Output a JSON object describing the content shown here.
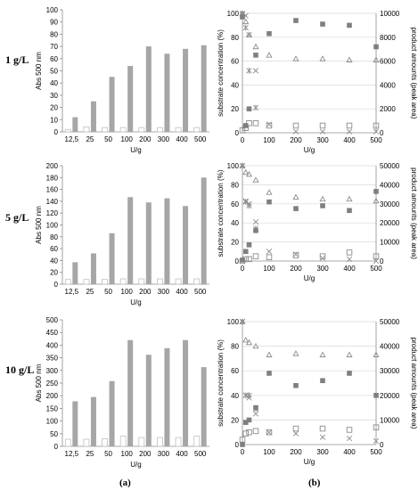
{
  "panel_labels": {
    "a": "(a)",
    "b": "(b)"
  },
  "row_labels": [
    "1 g/L",
    "5 g/L",
    "10 g/L"
  ],
  "colors": {
    "bar_fill": "#a6a6a6",
    "bar_empty_stroke": "#bfbfbf",
    "axis": "#8c8c8c",
    "grid": "#d9d9d9",
    "square_filled": "#7f7f7f",
    "marker_stroke": "#8c8c8c"
  },
  "chart_data": [
    {
      "type": "bar",
      "panel": "a",
      "concentration": "1 g/L",
      "categories": [
        "12,5",
        "25",
        "50",
        "100",
        "200",
        "300",
        "400",
        "500"
      ],
      "series": [
        {
          "values": [
            2,
            4,
            3.5,
            3.5,
            3.5,
            3.5,
            3.5,
            3.5
          ],
          "style": "open"
        },
        {
          "values": [
            12,
            25,
            45,
            54,
            70,
            64,
            68,
            71
          ],
          "style": "filled"
        }
      ],
      "xlabel": "U/g",
      "ylabel": "Abs 500 nm",
      "ylim": [
        0,
        100
      ],
      "ytick_step": 10,
      "yticks": [
        "0",
        "10",
        "20",
        "30",
        "40",
        "50",
        "60",
        "70",
        "80",
        "90",
        "100"
      ],
      "grid": false
    },
    {
      "type": "bar",
      "panel": "a",
      "concentration": "5 g/L",
      "categories": [
        "12,5",
        "25",
        "50",
        "100",
        "200",
        "300",
        "400",
        "500"
      ],
      "series": [
        {
          "values": [
            8,
            8,
            8,
            9,
            9,
            9,
            9,
            9
          ],
          "style": "open"
        },
        {
          "values": [
            37,
            52,
            86,
            147,
            138,
            145,
            132,
            180
          ],
          "style": "filled"
        }
      ],
      "xlabel": "U/g",
      "ylabel": "Abs 500 nm",
      "ylim": [
        0,
        200
      ],
      "ytick_step": 20,
      "yticks": [
        "0",
        "20",
        "40",
        "60",
        "80",
        "100",
        "120",
        "140",
        "160",
        "180",
        "200"
      ],
      "grid": false
    },
    {
      "type": "bar",
      "panel": "a",
      "concentration": "10 g/L",
      "categories": [
        "12,5",
        "25",
        "50",
        "100",
        "200",
        "300",
        "400",
        "500"
      ],
      "series": [
        {
          "values": [
            28,
            28,
            30,
            40,
            35,
            35,
            35,
            40
          ],
          "style": "open"
        },
        {
          "values": [
            178,
            195,
            258,
            420,
            362,
            388,
            420,
            313
          ],
          "style": "filled"
        }
      ],
      "xlabel": "U/g",
      "ylabel": "Abs 500 nm",
      "ylim": [
        0,
        500
      ],
      "ytick_step": 50,
      "yticks": [
        "0",
        "50",
        "100",
        "150",
        "200",
        "250",
        "300",
        "350",
        "400",
        "450",
        "500"
      ],
      "grid": false
    },
    {
      "type": "scatter",
      "panel": "b",
      "concentration": "1 g/L",
      "xlabel": "U/g",
      "ylabel": "substrate concentration (%)",
      "y2label": "product amounts (peak area)",
      "xlim": [
        0,
        500
      ],
      "xticks": [
        "0",
        "100",
        "200",
        "300",
        "400",
        "500"
      ],
      "ylim": [
        0,
        100
      ],
      "yticks": [
        "0",
        "20",
        "40",
        "60",
        "80",
        "100"
      ],
      "y2lim": [
        0,
        10000
      ],
      "y2ticks": [
        "0",
        "2000",
        "4000",
        "6000",
        "8000",
        "10000"
      ],
      "grid": true,
      "series": [
        {
          "marker": "triangle",
          "axis": "left",
          "x": [
            0,
            12.5,
            25,
            50,
            100,
            200,
            300,
            400,
            500
          ],
          "y": [
            100,
            93,
            82,
            72,
            65,
            62,
            62,
            61,
            61
          ]
        },
        {
          "marker": "x",
          "axis": "left",
          "x": [
            0,
            12.5,
            25,
            50,
            100,
            200,
            300,
            400,
            500
          ],
          "y": [
            100,
            98,
            82,
            52,
            7,
            1,
            1,
            1,
            1
          ]
        },
        {
          "marker": "asterisk",
          "axis": "left",
          "x": [
            0,
            12.5,
            25,
            50
          ],
          "y": [
            99,
            88,
            52,
            21
          ]
        },
        {
          "marker": "square-open",
          "axis": "right",
          "x": [
            0,
            12.5,
            25,
            50,
            100,
            200,
            300,
            400,
            500
          ],
          "y": [
            200,
            400,
            800,
            800,
            600,
            600,
            600,
            600,
            600
          ]
        },
        {
          "marker": "square-filled",
          "axis": "right",
          "x": [
            0,
            12.5,
            25,
            50,
            100,
            200,
            300,
            400,
            500
          ],
          "y": [
            9700,
            600,
            2000,
            6500,
            8300,
            9400,
            9100,
            9000,
            7200
          ]
        }
      ]
    },
    {
      "type": "scatter",
      "panel": "b",
      "concentration": "5 g/L",
      "xlabel": "U/g",
      "ylabel": "substrate concentration (%)",
      "y2label": "product amounts (peak area)",
      "xlim": [
        0,
        500
      ],
      "xticks": [
        "0",
        "100",
        "200",
        "300",
        "400",
        "500"
      ],
      "ylim": [
        0,
        100
      ],
      "yticks": [
        "0",
        "20",
        "40",
        "60",
        "80",
        "100"
      ],
      "y2lim": [
        0,
        50000
      ],
      "y2ticks": [
        "0",
        "10000",
        "20000",
        "30000",
        "40000",
        "50000"
      ],
      "grid": true,
      "series": [
        {
          "marker": "triangle",
          "axis": "left",
          "x": [
            0,
            12.5,
            25,
            50,
            100,
            200,
            300,
            400,
            500
          ],
          "y": [
            100,
            93,
            91,
            85,
            72,
            67,
            65,
            65,
            63
          ]
        },
        {
          "marker": "x",
          "axis": "left",
          "x": [
            0,
            12.5,
            25,
            50,
            100,
            200,
            300,
            400,
            500
          ],
          "y": [
            100,
            63,
            60,
            41,
            10,
            7,
            3,
            2,
            0
          ]
        },
        {
          "marker": "asterisk",
          "axis": "left",
          "x": [
            0,
            12.5,
            25,
            50
          ],
          "y": [
            100,
            62,
            58,
            34
          ]
        },
        {
          "marker": "square-open",
          "axis": "right",
          "x": [
            0,
            12.5,
            25,
            50,
            100,
            200,
            300,
            400,
            500
          ],
          "y": [
            0,
            1000,
            1000,
            2500,
            2000,
            3000,
            2500,
            4500,
            2500
          ]
        },
        {
          "marker": "square-filled",
          "axis": "right",
          "x": [
            0,
            12.5,
            25,
            50,
            100,
            200,
            300,
            400,
            500
          ],
          "y": [
            500,
            5000,
            8500,
            16000,
            31000,
            27500,
            29000,
            26500,
            36500
          ]
        }
      ]
    },
    {
      "type": "scatter",
      "panel": "b",
      "concentration": "10 g/L",
      "xlabel": "U/g",
      "ylabel": "substrate concentration (%)",
      "y2label": "product amounts (peak area)",
      "xlim": [
        0,
        500
      ],
      "xticks": [
        "0",
        "100",
        "200",
        "300",
        "400",
        "500"
      ],
      "ylim": [
        0,
        100
      ],
      "yticks": [
        "0",
        "20",
        "40",
        "60",
        "80",
        "100"
      ],
      "y2lim": [
        0,
        50000
      ],
      "y2ticks": [
        "0",
        "10000",
        "20000",
        "30000",
        "40000",
        "50000"
      ],
      "grid": true,
      "series": [
        {
          "marker": "triangle",
          "axis": "left",
          "x": [
            0,
            12.5,
            25,
            50,
            100,
            200,
            300,
            400,
            500
          ],
          "y": [
            100,
            85,
            83,
            80,
            73,
            74,
            73,
            73,
            73
          ]
        },
        {
          "marker": "x",
          "axis": "left",
          "x": [
            0,
            12.5,
            25,
            50,
            100,
            200,
            300,
            400,
            500
          ],
          "y": [
            100,
            40,
            38,
            25,
            10,
            9,
            6,
            5,
            3
          ]
        },
        {
          "marker": "asterisk",
          "axis": "left",
          "x": [
            0,
            12.5,
            25,
            50
          ],
          "y": [
            100,
            40,
            40,
            29
          ]
        },
        {
          "marker": "square-open",
          "axis": "right",
          "x": [
            0,
            12.5,
            25,
            50,
            100,
            200,
            300,
            400,
            500
          ],
          "y": [
            2000,
            4500,
            5000,
            5500,
            5000,
            6500,
            6500,
            6000,
            7000
          ]
        },
        {
          "marker": "square-filled",
          "axis": "right",
          "x": [
            0,
            12.5,
            25,
            50,
            100,
            200,
            300,
            400,
            500
          ],
          "y": [
            0,
            9000,
            10000,
            15000,
            29000,
            24000,
            26000,
            29000,
            20000
          ]
        }
      ]
    }
  ]
}
